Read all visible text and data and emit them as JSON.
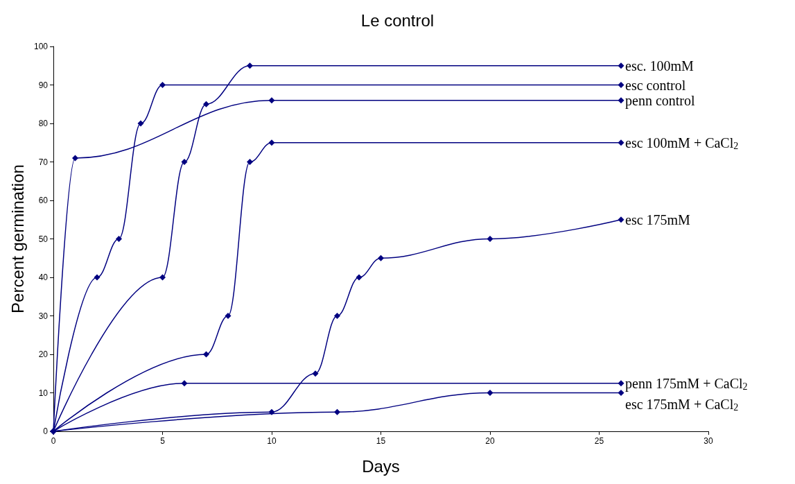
{
  "chart_data": {
    "type": "line",
    "title": "Le control",
    "xlabel": "Days",
    "ylabel": "Percent germination",
    "xlim": [
      0,
      30
    ],
    "xticks": [
      0,
      5,
      10,
      15,
      20,
      25,
      30
    ],
    "ylim": [
      0,
      100
    ],
    "yticks": [
      0,
      10,
      20,
      30,
      40,
      50,
      60,
      70,
      80,
      90,
      100
    ],
    "grid": false,
    "legend": false,
    "marker": "diamond",
    "line_style": "solid",
    "series": [
      {
        "name": "esc. 100mM",
        "color": "#000080",
        "x": [
          0,
          5,
          6,
          7,
          9,
          26
        ],
        "values": [
          0,
          40,
          70,
          85,
          95,
          95
        ]
      },
      {
        "name": "esc control",
        "color": "#000080",
        "x": [
          0,
          2,
          3,
          4,
          5,
          26
        ],
        "values": [
          0,
          40,
          50,
          80,
          90,
          90
        ]
      },
      {
        "name": "penn control",
        "color": "#000080",
        "x": [
          0,
          1,
          10,
          26
        ],
        "values": [
          0,
          71,
          86,
          86
        ]
      },
      {
        "name": "esc 100mM + CaCl$_{2}$",
        "color": "#000080",
        "x": [
          0,
          7,
          8,
          9,
          10,
          26
        ],
        "values": [
          0,
          20,
          30,
          70,
          75,
          75
        ]
      },
      {
        "name": "esc 175mM",
        "color": "#000080",
        "x": [
          0,
          10,
          12,
          13,
          14,
          15,
          20,
          26
        ],
        "values": [
          0,
          5,
          15,
          30,
          40,
          45,
          50,
          55
        ]
      },
      {
        "name": "penn 175mM + CaCl$_{2}$",
        "color": "#000080",
        "x": [
          0,
          6,
          26
        ],
        "values": [
          0,
          12.5,
          12.5
        ]
      },
      {
        "name": "esc 175mM + CaCl$_{2}$",
        "color": "#000080",
        "x": [
          0,
          13,
          20,
          26
        ],
        "values": [
          0,
          5,
          10,
          10
        ]
      }
    ]
  }
}
